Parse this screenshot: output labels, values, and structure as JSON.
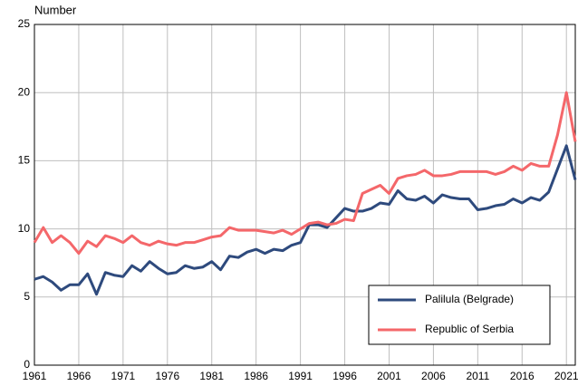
{
  "chart_data": {
    "type": "line",
    "y_axis_label": "Number",
    "x": [
      1961,
      1962,
      1963,
      1964,
      1965,
      1966,
      1967,
      1968,
      1969,
      1970,
      1971,
      1972,
      1973,
      1974,
      1975,
      1976,
      1977,
      1978,
      1979,
      1980,
      1981,
      1982,
      1983,
      1984,
      1985,
      1986,
      1987,
      1988,
      1989,
      1990,
      1991,
      1992,
      1993,
      1994,
      1995,
      1996,
      1997,
      1998,
      1999,
      2000,
      2001,
      2002,
      2003,
      2004,
      2005,
      2006,
      2007,
      2008,
      2009,
      2010,
      2011,
      2012,
      2013,
      2014,
      2015,
      2016,
      2017,
      2018,
      2019,
      2020,
      2021,
      2022
    ],
    "series": [
      {
        "name": "Palilula (Belgrade)",
        "color": "#2e4a7d",
        "values": [
          6.3,
          6.5,
          6.1,
          5.5,
          5.9,
          5.9,
          6.7,
          5.2,
          6.8,
          6.6,
          6.5,
          7.3,
          6.9,
          7.6,
          7.1,
          6.7,
          6.8,
          7.3,
          7.1,
          7.2,
          7.6,
          7.0,
          8.0,
          7.9,
          8.3,
          8.5,
          8.2,
          8.5,
          8.4,
          8.8,
          9.0,
          10.3,
          10.3,
          10.1,
          10.8,
          11.5,
          11.3,
          11.3,
          11.5,
          11.9,
          11.8,
          12.8,
          12.2,
          12.1,
          12.4,
          11.9,
          12.5,
          12.3,
          12.2,
          12.2,
          11.4,
          11.5,
          11.7,
          11.8,
          12.2,
          11.9,
          12.3,
          12.1,
          12.7,
          14.4,
          16.1,
          13.6
        ]
      },
      {
        "name": "Republic of Serbia",
        "color": "#f4676a",
        "values": [
          9.0,
          10.1,
          9.0,
          9.5,
          9.0,
          8.2,
          9.1,
          8.7,
          9.5,
          9.3,
          9.0,
          9.5,
          9.0,
          8.8,
          9.1,
          8.9,
          8.8,
          9.0,
          9.0,
          9.2,
          9.4,
          9.5,
          10.1,
          9.9,
          9.9,
          9.9,
          9.8,
          9.7,
          9.9,
          9.6,
          10.0,
          10.4,
          10.5,
          10.3,
          10.4,
          10.7,
          10.6,
          12.6,
          12.9,
          13.2,
          12.6,
          13.7,
          13.9,
          14.0,
          14.3,
          13.9,
          13.9,
          14.0,
          14.2,
          14.2,
          14.2,
          14.2,
          14.0,
          14.2,
          14.6,
          14.3,
          14.8,
          14.6,
          14.6,
          16.9,
          20.0,
          16.4
        ]
      }
    ],
    "xlim": [
      1961,
      2022
    ],
    "xticks": [
      1961,
      1966,
      1971,
      1976,
      1981,
      1986,
      1991,
      1996,
      2001,
      2006,
      2011,
      2016,
      2021
    ],
    "ylim": [
      0,
      25
    ],
    "yticks": [
      0,
      5,
      10,
      15,
      20,
      25
    ],
    "grid": true,
    "legend": "lower right"
  }
}
